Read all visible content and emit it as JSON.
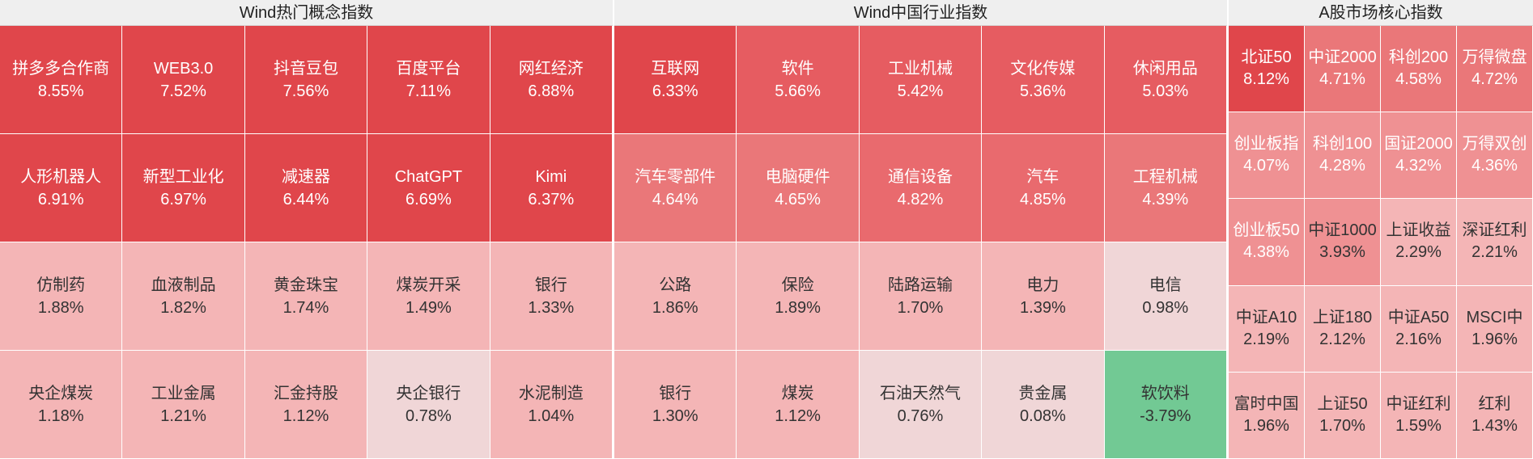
{
  "panels": {
    "concept": {
      "title": "Wind热门概念指数",
      "cells": [
        {
          "name": "拼多多合作商",
          "pct": "8.55%",
          "bg": "#e0464b",
          "fg": "#ffffff"
        },
        {
          "name": "WEB3.0",
          "pct": "7.52%",
          "bg": "#e0464b",
          "fg": "#ffffff"
        },
        {
          "name": "抖音豆包",
          "pct": "7.56%",
          "bg": "#e0464b",
          "fg": "#ffffff"
        },
        {
          "name": "百度平台",
          "pct": "7.11%",
          "bg": "#e0464b",
          "fg": "#ffffff"
        },
        {
          "name": "网红经济",
          "pct": "6.88%",
          "bg": "#e0464b",
          "fg": "#ffffff"
        },
        {
          "name": "人形机器人",
          "pct": "6.91%",
          "bg": "#e0464b",
          "fg": "#ffffff"
        },
        {
          "name": "新型工业化",
          "pct": "6.97%",
          "bg": "#e0464b",
          "fg": "#ffffff"
        },
        {
          "name": "减速器",
          "pct": "6.44%",
          "bg": "#e0464b",
          "fg": "#ffffff"
        },
        {
          "name": "ChatGPT",
          "pct": "6.69%",
          "bg": "#e0464b",
          "fg": "#ffffff"
        },
        {
          "name": "Kimi",
          "pct": "6.37%",
          "bg": "#e0464b",
          "fg": "#ffffff"
        },
        {
          "name": "仿制药",
          "pct": "1.88%",
          "bg": "#f4b5b6",
          "fg": "#333333"
        },
        {
          "name": "血液制品",
          "pct": "1.82%",
          "bg": "#f4b5b6",
          "fg": "#333333"
        },
        {
          "name": "黄金珠宝",
          "pct": "1.74%",
          "bg": "#f4b5b6",
          "fg": "#333333"
        },
        {
          "name": "煤炭开采",
          "pct": "1.49%",
          "bg": "#f4b5b6",
          "fg": "#333333"
        },
        {
          "name": "银行",
          "pct": "1.33%",
          "bg": "#f4b5b6",
          "fg": "#333333"
        },
        {
          "name": "央企煤炭",
          "pct": "1.18%",
          "bg": "#f4b5b6",
          "fg": "#333333"
        },
        {
          "name": "工业金属",
          "pct": "1.21%",
          "bg": "#f4b5b6",
          "fg": "#333333"
        },
        {
          "name": "汇金持股",
          "pct": "1.12%",
          "bg": "#f4b5b6",
          "fg": "#333333"
        },
        {
          "name": "央企银行",
          "pct": "0.78%",
          "bg": "#f0d6d7",
          "fg": "#333333"
        },
        {
          "name": "水泥制造",
          "pct": "1.04%",
          "bg": "#f4b5b6",
          "fg": "#333333"
        }
      ]
    },
    "industry": {
      "title": "Wind中国行业指数",
      "cells": [
        {
          "name": "互联网",
          "pct": "6.33%",
          "bg": "#e0464b",
          "fg": "#ffffff"
        },
        {
          "name": "软件",
          "pct": "5.66%",
          "bg": "#e65c61",
          "fg": "#ffffff"
        },
        {
          "name": "工业机械",
          "pct": "5.42%",
          "bg": "#e65c61",
          "fg": "#ffffff"
        },
        {
          "name": "文化传媒",
          "pct": "5.36%",
          "bg": "#e65c61",
          "fg": "#ffffff"
        },
        {
          "name": "休闲用品",
          "pct": "5.03%",
          "bg": "#e65c61",
          "fg": "#ffffff"
        },
        {
          "name": "汽车零部件",
          "pct": "4.64%",
          "bg": "#ea7779",
          "fg": "#ffffff"
        },
        {
          "name": "电脑硬件",
          "pct": "4.65%",
          "bg": "#ea7779",
          "fg": "#ffffff"
        },
        {
          "name": "通信设备",
          "pct": "4.82%",
          "bg": "#e96a6e",
          "fg": "#ffffff"
        },
        {
          "name": "汽车",
          "pct": "4.85%",
          "bg": "#e96a6e",
          "fg": "#ffffff"
        },
        {
          "name": "工程机械",
          "pct": "4.39%",
          "bg": "#ea7779",
          "fg": "#ffffff"
        },
        {
          "name": "公路",
          "pct": "1.86%",
          "bg": "#f4b5b6",
          "fg": "#333333"
        },
        {
          "name": "保险",
          "pct": "1.89%",
          "bg": "#f4b5b6",
          "fg": "#333333"
        },
        {
          "name": "陆路运输",
          "pct": "1.70%",
          "bg": "#f4b5b6",
          "fg": "#333333"
        },
        {
          "name": "电力",
          "pct": "1.39%",
          "bg": "#f4b5b6",
          "fg": "#333333"
        },
        {
          "name": "电信",
          "pct": "0.98%",
          "bg": "#f0d6d7",
          "fg": "#333333"
        },
        {
          "name": "银行",
          "pct": "1.30%",
          "bg": "#f4b5b6",
          "fg": "#333333"
        },
        {
          "name": "煤炭",
          "pct": "1.12%",
          "bg": "#f4b5b6",
          "fg": "#333333"
        },
        {
          "name": "石油天然气",
          "pct": "0.76%",
          "bg": "#f0d6d7",
          "fg": "#333333"
        },
        {
          "name": "贵金属",
          "pct": "0.08%",
          "bg": "#f0d6d7",
          "fg": "#333333"
        },
        {
          "name": "软饮料",
          "pct": "-3.79%",
          "bg": "#72c994",
          "fg": "#333333"
        }
      ]
    },
    "core": {
      "title": "A股市场核心指数",
      "cells": [
        {
          "name": "北证50",
          "pct": "8.12%",
          "bg": "#e0464b",
          "fg": "#ffffff"
        },
        {
          "name": "中证2000",
          "pct": "4.71%",
          "bg": "#ea7779",
          "fg": "#ffffff"
        },
        {
          "name": "科创200",
          "pct": "4.58%",
          "bg": "#ea7779",
          "fg": "#ffffff"
        },
        {
          "name": "万得微盘",
          "pct": "4.72%",
          "bg": "#ea7779",
          "fg": "#ffffff"
        },
        {
          "name": "创业板指",
          "pct": "4.07%",
          "bg": "#ef9193",
          "fg": "#ffffff"
        },
        {
          "name": "科创100",
          "pct": "4.28%",
          "bg": "#ef9193",
          "fg": "#ffffff"
        },
        {
          "name": "国证2000",
          "pct": "4.32%",
          "bg": "#ef9193",
          "fg": "#ffffff"
        },
        {
          "name": "万得双创",
          "pct": "4.36%",
          "bg": "#ef9193",
          "fg": "#ffffff"
        },
        {
          "name": "创业板50",
          "pct": "4.38%",
          "bg": "#ef9193",
          "fg": "#ffffff"
        },
        {
          "name": "中证1000",
          "pct": "3.93%",
          "bg": "#ef9193",
          "fg": "#333333"
        },
        {
          "name": "上证收益",
          "pct": "2.29%",
          "bg": "#f4b5b6",
          "fg": "#333333"
        },
        {
          "name": "深证红利",
          "pct": "2.21%",
          "bg": "#f4b5b6",
          "fg": "#333333"
        },
        {
          "name": "中证A10",
          "pct": "2.19%",
          "bg": "#f4b5b6",
          "fg": "#333333"
        },
        {
          "name": "上证180",
          "pct": "2.12%",
          "bg": "#f4b5b6",
          "fg": "#333333"
        },
        {
          "name": "中证A50",
          "pct": "2.16%",
          "bg": "#f4b5b6",
          "fg": "#333333"
        },
        {
          "name": "MSCI中",
          "pct": "1.96%",
          "bg": "#f4b5b6",
          "fg": "#333333"
        },
        {
          "name": "富时中国",
          "pct": "1.96%",
          "bg": "#f4b5b6",
          "fg": "#333333"
        },
        {
          "name": "上证50",
          "pct": "1.70%",
          "bg": "#f4b5b6",
          "fg": "#333333"
        },
        {
          "name": "中证红利",
          "pct": "1.59%",
          "bg": "#f4b5b6",
          "fg": "#333333"
        },
        {
          "name": "红利",
          "pct": "1.43%",
          "bg": "#f4b5b6",
          "fg": "#333333"
        }
      ]
    }
  }
}
